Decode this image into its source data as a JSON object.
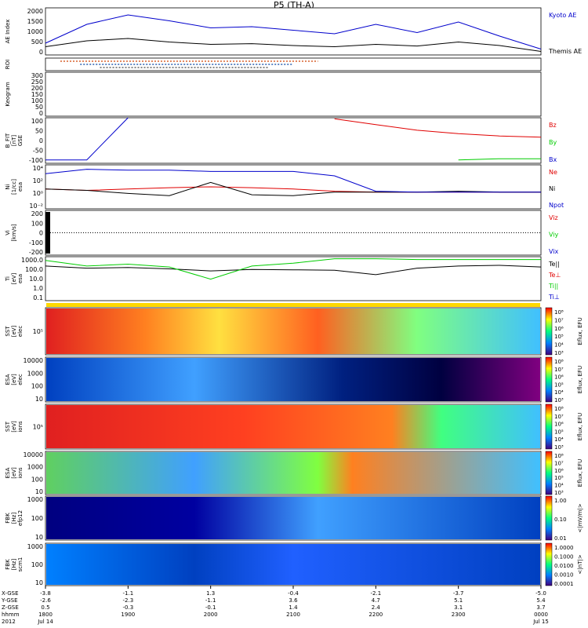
{
  "title": "P5 (TH-A)",
  "colors": {
    "kyoto": "#0000cc",
    "themis": "#000000",
    "red": "#e00000",
    "green": "#00cc00",
    "blue": "#0000cc",
    "black": "#000000"
  },
  "panels": [
    {
      "id": "ae",
      "ylabel": "AE Index",
      "ticks": [
        "2000",
        "1500",
        "1000",
        "500",
        "0"
      ],
      "legend": [
        {
          "text": "Kyoto AE",
          "color": "#0000cc"
        },
        {
          "text": "Themis AE",
          "color": "#000000"
        }
      ]
    },
    {
      "id": "roi",
      "ylabel": "ROI",
      "ticks": [],
      "legend": []
    },
    {
      "id": "keogram",
      "ylabel": "Keogram",
      "ticks": [
        "300",
        "250",
        "200",
        "150",
        "100",
        "50",
        "0"
      ],
      "legend": []
    },
    {
      "id": "bfit",
      "ylabel": "B_FIT\n[nT]\nGSE",
      "ticks": [
        "100",
        "50",
        "0",
        "-50",
        "-100"
      ],
      "legend": [
        {
          "text": "Bz",
          "color": "#e00000"
        },
        {
          "text": "By",
          "color": "#00cc00"
        },
        {
          "text": "Bx",
          "color": "#0000cc"
        }
      ]
    },
    {
      "id": "ni",
      "ylabel": "Ni\n[1/cc]\nesa",
      "ticks": [
        "10⁴",
        "10²",
        "10⁰",
        "10⁻²"
      ],
      "legend": [
        {
          "text": "Ne",
          "color": "#e00000"
        },
        {
          "text": "Ni",
          "color": "#000000"
        },
        {
          "text": "Npot",
          "color": "#0000cc"
        }
      ]
    },
    {
      "id": "vi",
      "ylabel": "Vi\n[km/s]",
      "ticks": [
        "200",
        "100",
        "0",
        "-100",
        "-200"
      ],
      "legend": [
        {
          "text": "Viz",
          "color": "#e00000"
        },
        {
          "text": "Viy",
          "color": "#00cc00"
        },
        {
          "text": "Vix",
          "color": "#0000cc"
        }
      ]
    },
    {
      "id": "ti",
      "ylabel": "Ti\n[eV]\nesa",
      "ticks": [
        "1000.0",
        "100.0",
        "10.0",
        "1.0",
        "0.1"
      ],
      "legend": [
        {
          "text": "Te||",
          "color": "#000000"
        },
        {
          "text": "Te⊥",
          "color": "#e00000"
        },
        {
          "text": "Ti||",
          "color": "#00cc00"
        },
        {
          "text": "Ti⊥",
          "color": "#0000cc"
        }
      ]
    },
    {
      "id": "sste",
      "ylabel": "SST\n[eV]\nelec",
      "ticks": [
        "10⁵"
      ],
      "legend": []
    },
    {
      "id": "esae",
      "ylabel": "ESA\n[eV]\nelec",
      "ticks": [
        "10000",
        "1000",
        "100",
        "10"
      ],
      "legend": []
    },
    {
      "id": "ssti",
      "ylabel": "SST\n[eV]\nions",
      "ticks": [
        "10⁵"
      ],
      "legend": []
    },
    {
      "id": "esai",
      "ylabel": "ESA\n[eV]\nions",
      "ticks": [
        "10000",
        "1000",
        "100",
        "10"
      ],
      "legend": []
    },
    {
      "id": "fbke",
      "ylabel": "FBK\n[Hz]\nefp12",
      "ticks": [
        "1000",
        "100",
        "10"
      ],
      "legend": []
    },
    {
      "id": "fbkb",
      "ylabel": "FBK\n[Hz]\nscm1",
      "ticks": [
        "1000",
        "100",
        "10"
      ],
      "legend": []
    }
  ],
  "colorbars": [
    {
      "id": "cb1",
      "label": "Eflux, EFU",
      "ticks": [
        "10⁸",
        "10⁷",
        "10⁶",
        "10⁵",
        "10⁴",
        "10³"
      ]
    },
    {
      "id": "cb2",
      "label": "Eflux, EFU",
      "ticks": [
        "10⁸",
        "10⁷",
        "10⁶",
        "10⁵",
        "10⁴",
        "10³"
      ]
    },
    {
      "id": "cb3",
      "label": "Eflux, EFU",
      "ticks": [
        "10⁸",
        "10⁷",
        "10⁶",
        "10⁵",
        "10⁴",
        "10³"
      ]
    },
    {
      "id": "cb4",
      "label": "Eflux, EFU",
      "ticks": [
        "10⁸",
        "10⁷",
        "10⁶",
        "10⁵",
        "10⁴",
        "10³"
      ]
    },
    {
      "id": "cb5",
      "label": "<|mV/m|>",
      "ticks": [
        "1.00",
        "0.10",
        "0.01"
      ]
    },
    {
      "id": "cb6",
      "label": "<|nT|>",
      "ticks": [
        "1.0000",
        "0.1000",
        "0.0100",
        "0.0010",
        "0.0001"
      ]
    }
  ],
  "xaxis": {
    "row_labels": [
      "X-GSE",
      "Y-GSE",
      "Z-GSE",
      "hhmm",
      "2012"
    ],
    "columns": [
      {
        "x": [
          "-3.8",
          "-2.6",
          "0.5",
          "1800",
          "Jul 14"
        ]
      },
      {
        "x": [
          "-1.1",
          "-2.3",
          "-0.3",
          "1900",
          ""
        ]
      },
      {
        "x": [
          "1.3",
          "-1.1",
          "-0.1",
          "2000",
          ""
        ]
      },
      {
        "x": [
          "-0.4",
          "3.6",
          "1.4",
          "2100",
          ""
        ]
      },
      {
        "x": [
          "-2.1",
          "4.7",
          "2.4",
          "2200",
          ""
        ]
      },
      {
        "x": [
          "-3.7",
          "5.1",
          "3.1",
          "2300",
          ""
        ]
      },
      {
        "x": [
          "-5.0",
          "5.4",
          "3.7",
          "0000",
          "Jul 15"
        ]
      }
    ]
  },
  "chart_data": [
    {
      "type": "line",
      "title": "P5 (TH-A)",
      "ylabel": "AE Index",
      "ylim": [
        0,
        2000
      ],
      "x": [
        "1800",
        "1830",
        "1900",
        "1930",
        "2000",
        "2030",
        "2100",
        "2130",
        "2200",
        "2230",
        "2300",
        "2330",
        "0000"
      ],
      "series": [
        {
          "name": "Kyoto AE",
          "values": [
            500,
            1300,
            1700,
            1450,
            1150,
            1200,
            1050,
            900,
            1300,
            950,
            1400,
            800,
            250
          ]
        },
        {
          "name": "Themis AE",
          "values": [
            350,
            600,
            700,
            550,
            450,
            480,
            400,
            350,
            450,
            380,
            550,
            400,
            150
          ]
        }
      ]
    },
    {
      "type": "line",
      "ylabel": "B_FIT [nT] GSE",
      "ylim": [
        -100,
        100
      ],
      "x": [
        "1800",
        "1830",
        "1900",
        "1930",
        "2000",
        "2030",
        "2100",
        "2130",
        "2200",
        "2230",
        "2300",
        "2330",
        "0000"
      ],
      "series": [
        {
          "name": "Bz",
          "values": [
            null,
            null,
            null,
            null,
            null,
            null,
            null,
            95,
            70,
            45,
            30,
            20,
            15
          ]
        },
        {
          "name": "By",
          "values": [
            null,
            null,
            null,
            null,
            null,
            null,
            null,
            null,
            null,
            null,
            -85,
            -80,
            -80
          ]
        },
        {
          "name": "Bx",
          "values": [
            -85,
            -85,
            100,
            null,
            null,
            null,
            null,
            null,
            null,
            null,
            null,
            null,
            null
          ]
        }
      ]
    },
    {
      "type": "line",
      "ylabel": "Ti [eV] esa",
      "ylim": [
        0.1,
        5000
      ],
      "x": [
        "1800",
        "1830",
        "1900",
        "1930",
        "2000",
        "2030",
        "2100",
        "2130",
        "2200",
        "2230",
        "2300",
        "2330",
        "0000"
      ],
      "series": [
        {
          "name": "Te||",
          "values": [
            500,
            300,
            350,
            250,
            150,
            220,
            200,
            180,
            60,
            300,
            500,
            600,
            400
          ]
        },
        {
          "name": "Ti||",
          "values": [
            2000,
            500,
            800,
            400,
            20,
            500,
            1000,
            3000,
            3000,
            2500,
            2500,
            2500,
            2500
          ]
        }
      ]
    }
  ]
}
